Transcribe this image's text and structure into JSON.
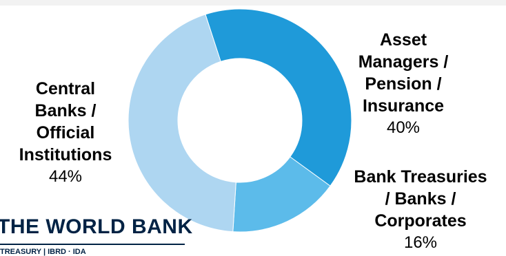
{
  "chart_data": {
    "type": "pie",
    "title": "",
    "slices": [
      {
        "label": "Asset Managers / Pension / Insurance",
        "value": 40,
        "pct_label": "40%",
        "color": "#1f9ad9"
      },
      {
        "label": "Bank Treasuries / Banks / Corporates",
        "value": 16,
        "pct_label": "16%",
        "color": "#5cbbea"
      },
      {
        "label": "Central Banks / Official Institutions",
        "value": 44,
        "pct_label": "44%",
        "color": "#aed6f1"
      }
    ]
  },
  "labels": {
    "asset_managers": {
      "lines": [
        "Asset",
        "Managers /",
        "Pension /",
        "Insurance"
      ],
      "pct": "40%"
    },
    "central_banks": {
      "lines": [
        "Central",
        "Banks /",
        "Official",
        "Institutions"
      ],
      "pct": "44%"
    },
    "bank_treasuries": {
      "lines": [
        "Bank Treasuries",
        "/ Banks /",
        "Corporates"
      ],
      "pct": "16%"
    }
  },
  "logo": {
    "title": "THE WORLD BANK",
    "subtitle": "TREASURY | IBRD · IDA"
  }
}
